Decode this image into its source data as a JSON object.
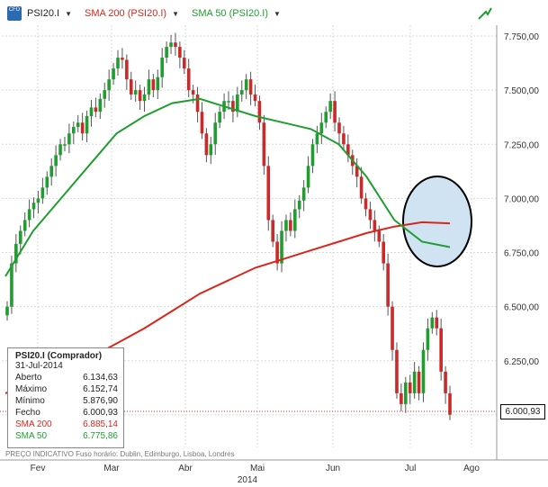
{
  "toolbar": {
    "symbol": "PSI20.I",
    "sma200_label": "SMA 200 (PSI20.I)",
    "sma50_label": "SMA 50 (PSI20.I)"
  },
  "legend": {
    "title": "PSI20.I (Comprador)",
    "date": "31-Jul-2014",
    "rows": [
      {
        "label": "Aberto",
        "value": "6.134,63"
      },
      {
        "label": "Máximo",
        "value": "6.152,74"
      },
      {
        "label": "Mínimo",
        "value": "5.876,90"
      },
      {
        "label": "Fecho",
        "value": "6.000,93"
      },
      {
        "label": "SMA 200",
        "value": "6.885,14"
      },
      {
        "label": "SMA 50",
        "value": "6.775,86"
      }
    ]
  },
  "current_price_tag": "6.000,93",
  "footer_text": "PREÇO INDICATIVO    Fuso horário: Dublin, Edimburgo, Lisboa, Londres",
  "year_label": "2014",
  "colors": {
    "up": "#1f9e2f",
    "down": "#c92a2a",
    "sma200": "#d8261c",
    "sma50": "#1f9e2f",
    "ellipse_fill": "#cfe3f3"
  },
  "chart_data": {
    "type": "candlestick",
    "title": "PSI20.I",
    "ylim": [
      5850,
      7800
    ],
    "y_ticks": [
      "7.750,00",
      "7.500,00",
      "7.250,00",
      "7.000,00",
      "6.750,00",
      "6.500,00",
      "6.250,00",
      "6.000,00"
    ],
    "y_tick_values": [
      7750,
      7500,
      7250,
      7000,
      6750,
      6500,
      6250,
      6000
    ],
    "x_ticks": [
      "Fev",
      "Mar",
      "Abr",
      "Mai",
      "Jun",
      "Jul",
      "Ago"
    ],
    "grid": true,
    "last_close": 6000.93,
    "candles_closes": [
      6500,
      6700,
      6790,
      6850,
      6900,
      6950,
      6980,
      7000,
      7050,
      7100,
      7150,
      7200,
      7250,
      7250,
      7300,
      7330,
      7350,
      7300,
      7380,
      7420,
      7400,
      7460,
      7500,
      7550,
      7600,
      7650,
      7640,
      7550,
      7480,
      7500,
      7450,
      7480,
      7550,
      7500,
      7560,
      7650,
      7700,
      7720,
      7700,
      7650,
      7600,
      7500,
      7480,
      7400,
      7300,
      7200,
      7250,
      7350,
      7400,
      7450,
      7450,
      7400,
      7480,
      7500,
      7550,
      7480,
      7450,
      7350,
      7150,
      6900,
      6800,
      6700,
      6850,
      6900,
      6850,
      6950,
      6990,
      7050,
      7150,
      7250,
      7300,
      7350,
      7400,
      7450,
      7350,
      7300,
      7250,
      7200,
      7150,
      7100,
      7000,
      6950,
      6900,
      6850,
      6800,
      6700,
      6500,
      6300,
      6100,
      6050,
      6150,
      6100,
      6200,
      6100,
      6300,
      6400,
      6450,
      6400,
      6200,
      6100,
      6000.93
    ],
    "sma200": [
      6100,
      6150,
      6200,
      6260,
      6330,
      6400,
      6480,
      6560,
      6620,
      6680,
      6720,
      6760,
      6800,
      6840,
      6870,
      6890,
      6885
    ],
    "sma50": [
      6640,
      6850,
      7000,
      7150,
      7300,
      7380,
      7440,
      7460,
      7420,
      7380,
      7350,
      7320,
      7250,
      7100,
      6900,
      6800,
      6775
    ]
  }
}
